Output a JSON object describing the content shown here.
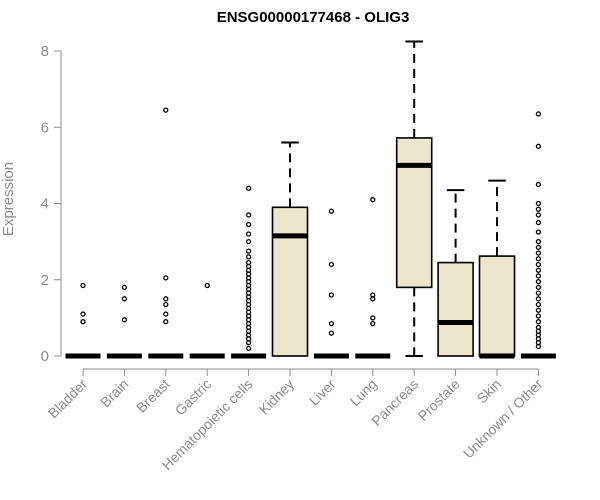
{
  "chart_data": {
    "type": "boxplot",
    "title": "ENSG00000177468 - OLIG3",
    "xlabel": "",
    "ylabel": "Expression",
    "ylim": [
      0,
      8.3
    ],
    "yticks": [
      0,
      2,
      4,
      6,
      8
    ],
    "grid": false,
    "legend": "none",
    "box_fill": "#ede6cd",
    "line_color": "#000000",
    "axis_color": "#8c8c8c",
    "categories": [
      "Bladder",
      "Brain",
      "Breast",
      "Gastric",
      "Hematopoietic cells",
      "Kidney",
      "Liver",
      "Lung",
      "Pancreas",
      "Prostate",
      "Skin",
      "Unknown / Other"
    ],
    "boxes": [
      {
        "category": "Bladder",
        "q1": 0,
        "median": 0,
        "q3": 0,
        "whisker_low": 0,
        "whisker_high": 0,
        "outliers": [
          0.9,
          1.1,
          1.85
        ]
      },
      {
        "category": "Brain",
        "q1": 0,
        "median": 0,
        "q3": 0,
        "whisker_low": 0,
        "whisker_high": 0,
        "outliers": [
          0.95,
          1.5,
          1.8
        ]
      },
      {
        "category": "Breast",
        "q1": 0,
        "median": 0,
        "q3": 0,
        "whisker_low": 0,
        "whisker_high": 0,
        "outliers": [
          0.9,
          1.1,
          1.35,
          1.5,
          2.05,
          6.45
        ]
      },
      {
        "category": "Gastric",
        "q1": 0,
        "median": 0,
        "q3": 0,
        "whisker_low": 0,
        "whisker_high": 0,
        "outliers": [
          1.85
        ]
      },
      {
        "category": "Hematopoietic cells",
        "q1": 0,
        "median": 0,
        "q3": 0,
        "whisker_low": 0,
        "whisker_high": 0,
        "outliers": [
          0.2,
          0.35,
          0.45,
          0.55,
          0.65,
          0.75,
          0.85,
          0.95,
          1.05,
          1.15,
          1.25,
          1.35,
          1.45,
          1.55,
          1.65,
          1.75,
          1.85,
          1.95,
          2.05,
          2.15,
          2.25,
          2.35,
          2.45,
          2.6,
          2.75,
          3.0,
          3.2,
          3.45,
          3.7,
          4.4
        ]
      },
      {
        "category": "Kidney",
        "q1": 0,
        "median": 3.15,
        "q3": 3.9,
        "whisker_low": 0,
        "whisker_high": 5.6,
        "outliers": []
      },
      {
        "category": "Liver",
        "q1": 0,
        "median": 0,
        "q3": 0,
        "whisker_low": 0,
        "whisker_high": 0,
        "outliers": [
          0.6,
          0.85,
          1.6,
          2.4,
          3.8
        ]
      },
      {
        "category": "Lung",
        "q1": 0,
        "median": 0,
        "q3": 0,
        "whisker_low": 0,
        "whisker_high": 0,
        "outliers": [
          0.85,
          1.0,
          1.5,
          1.6,
          4.1
        ]
      },
      {
        "category": "Pancreas",
        "q1": 1.8,
        "median": 5.0,
        "q3": 5.72,
        "whisker_low": 0,
        "whisker_high": 8.25,
        "outliers": []
      },
      {
        "category": "Prostate",
        "q1": 0,
        "median": 0.88,
        "q3": 2.45,
        "whisker_low": 0,
        "whisker_high": 4.35,
        "outliers": []
      },
      {
        "category": "Skin",
        "q1": 0,
        "median": 0,
        "q3": 2.62,
        "whisker_low": 0,
        "whisker_high": 4.6,
        "outliers": []
      },
      {
        "category": "Unknown / Other",
        "q1": 0,
        "median": 0,
        "q3": 0,
        "whisker_low": 0,
        "whisker_high": 0,
        "outliers": [
          0.25,
          0.35,
          0.45,
          0.55,
          0.65,
          0.75,
          0.9,
          1.05,
          1.2,
          1.35,
          1.5,
          1.65,
          1.8,
          1.95,
          2.1,
          2.25,
          2.4,
          2.55,
          2.7,
          2.85,
          3.0,
          3.25,
          3.5,
          3.7,
          3.85,
          4.0,
          4.5,
          5.5,
          6.35
        ]
      }
    ]
  }
}
